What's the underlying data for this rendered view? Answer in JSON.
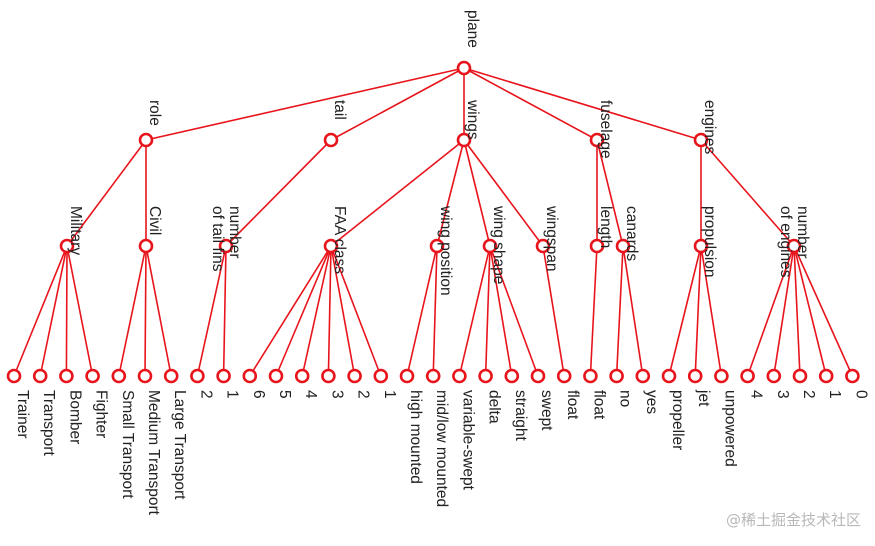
{
  "tree": {
    "name": "plane",
    "children": [
      {
        "name": "role",
        "children": [
          {
            "name": "Military",
            "children": [
              {
                "name": "Trainer"
              },
              {
                "name": "Transport"
              },
              {
                "name": "Bomber"
              },
              {
                "name": "Fighter"
              }
            ]
          },
          {
            "name": "Civil",
            "children": [
              {
                "name": "Small Transport"
              },
              {
                "name": "Medium Transport"
              },
              {
                "name": "Large Transport"
              }
            ]
          }
        ]
      },
      {
        "name": "tail",
        "children": [
          {
            "name": [
              "number",
              "of tail fins"
            ],
            "children": [
              {
                "name": "2"
              },
              {
                "name": "1"
              }
            ]
          }
        ]
      },
      {
        "name": "wings",
        "children": [
          {
            "name": "FAA class",
            "children": [
              {
                "name": "6"
              },
              {
                "name": "5"
              },
              {
                "name": "4"
              },
              {
                "name": "3"
              },
              {
                "name": "2"
              },
              {
                "name": "1"
              }
            ]
          },
          {
            "name": "wing position",
            "children": [
              {
                "name": "high mounted"
              },
              {
                "name": "mid/low mounted"
              }
            ]
          },
          {
            "name": "wing shape",
            "children": [
              {
                "name": "variable-swept"
              },
              {
                "name": "delta"
              },
              {
                "name": "straight"
              },
              {
                "name": "swept"
              }
            ]
          },
          {
            "name": "wingspan",
            "children": [
              {
                "name": "float"
              }
            ]
          }
        ]
      },
      {
        "name": "fuselage",
        "children": [
          {
            "name": "length",
            "children": [
              {
                "name": "float"
              }
            ]
          },
          {
            "name": "canards",
            "children": [
              {
                "name": "no"
              },
              {
                "name": "yes"
              }
            ]
          }
        ]
      },
      {
        "name": "engines",
        "children": [
          {
            "name": "propulsion",
            "children": [
              {
                "name": "propeller"
              },
              {
                "name": "jet"
              },
              {
                "name": "unpowered"
              }
            ]
          },
          {
            "name": [
              "number",
              "of engines"
            ],
            "children": [
              {
                "name": "4"
              },
              {
                "name": "3"
              },
              {
                "name": "2"
              },
              {
                "name": "1"
              },
              {
                "name": "0"
              }
            ]
          }
        ]
      }
    ]
  },
  "watermark": "@稀土掘金技术社区",
  "colors": {
    "stroke": "#e8141c",
    "fill": "#ffffff",
    "text": "#222222"
  }
}
